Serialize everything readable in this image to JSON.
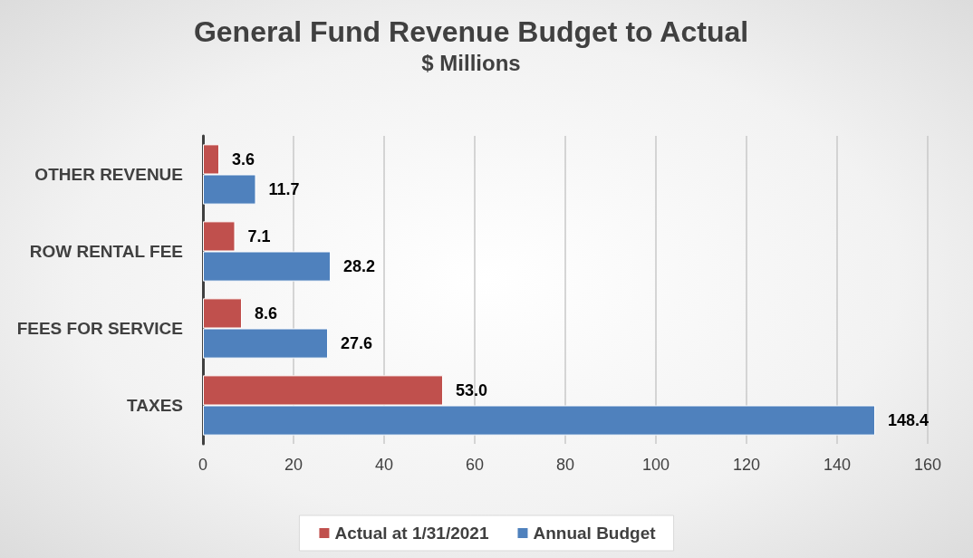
{
  "chart_data": {
    "type": "bar",
    "orientation": "horizontal",
    "title": "General Fund Revenue Budget to Actual",
    "subtitle": "$ Millions",
    "categories": [
      "OTHER REVENUE",
      "ROW RENTAL FEE",
      "FEES FOR SERVICE",
      "TAXES"
    ],
    "series": [
      {
        "name": "Actual at 1/31/2021",
        "color": "#c0504d",
        "values": [
          3.6,
          7.1,
          8.6,
          53.0
        ],
        "value_labels": [
          "3.6",
          "7.1",
          "8.6",
          "53.0"
        ]
      },
      {
        "name": "Annual Budget",
        "color": "#4f81bd",
        "values": [
          11.7,
          28.2,
          27.6,
          148.4
        ],
        "value_labels": [
          "11.7",
          "28.2",
          "27.6",
          "148.4"
        ]
      }
    ],
    "xlim": [
      0,
      160
    ],
    "xticks": [
      0,
      20,
      40,
      60,
      80,
      100,
      120,
      140,
      160
    ],
    "grid": "x",
    "legend": "bottom"
  }
}
